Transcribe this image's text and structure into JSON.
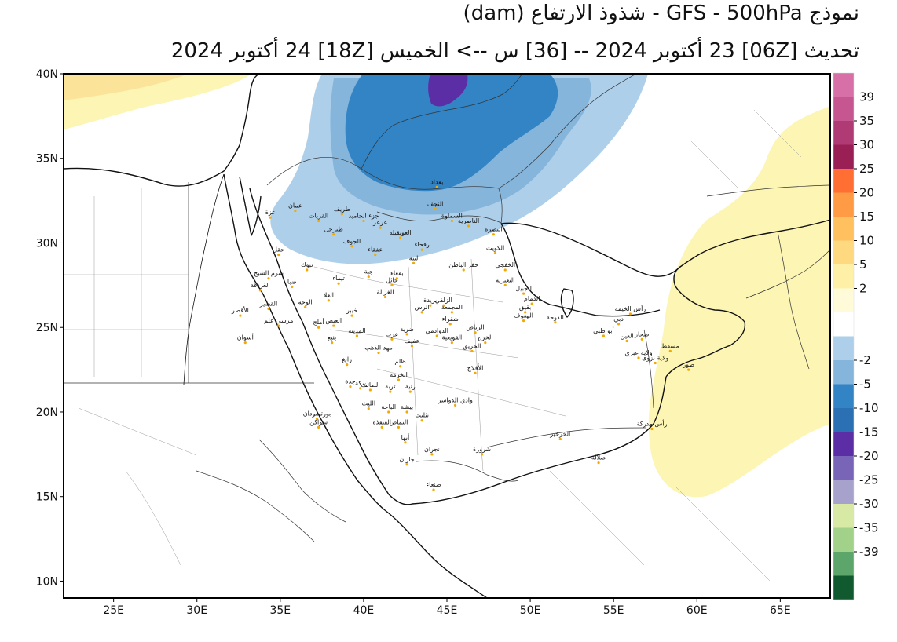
{
  "header": {
    "line1": "نموذج GFS - 500hPa - شذوذ الارتفاع (dam)",
    "line2": "تحديث [06Z] 23 أكتوبر 2024 -- [36] س --> الخميس [18Z] 24 أكتوبر 2024"
  },
  "map": {
    "lon_range": [
      22,
      68
    ],
    "lat_range": [
      9,
      40
    ],
    "x_ticks": [
      {
        "label": "25E",
        "lon": 25
      },
      {
        "label": "30E",
        "lon": 30
      },
      {
        "label": "35E",
        "lon": 35
      },
      {
        "label": "40E",
        "lon": 40
      },
      {
        "label": "45E",
        "lon": 45
      },
      {
        "label": "50E",
        "lon": 50
      },
      {
        "label": "55E",
        "lon": 55
      },
      {
        "label": "60E",
        "lon": 60
      },
      {
        "label": "65E",
        "lon": 65
      }
    ],
    "y_ticks": [
      {
        "label": "40N",
        "lat": 40
      },
      {
        "label": "35N",
        "lat": 35
      },
      {
        "label": "30N",
        "lat": 30
      },
      {
        "label": "25N",
        "lat": 25
      },
      {
        "label": "20N",
        "lat": 20
      },
      {
        "label": "15N",
        "lat": 15
      },
      {
        "label": "10N",
        "lat": 10
      }
    ],
    "anomaly_colors": {
      "neg2": "#aecfea",
      "neg5": "#86b5dc",
      "neg10": "#3384c4",
      "neg20": "#5b2ea6",
      "pos2": "#fcf5b4",
      "pos5": "#fbe49a"
    }
  },
  "colorbar": {
    "swatches": [
      "#d670a6",
      "#c5568f",
      "#b03a73",
      "#9a1f55",
      "#ff6e33",
      "#ff9a45",
      "#ffc060",
      "#ffd97f",
      "#fff0a8",
      "#fffbd8",
      "#ffffff",
      "#aecfea",
      "#86b5dc",
      "#3384c4",
      "#2a70b2",
      "#5b2ea6",
      "#7865b8",
      "#a6a2cc",
      "#d7e9a5",
      "#a2d18a",
      "#5ca66c",
      "#11592f"
    ],
    "labels": [
      "39",
      "35",
      "30",
      "25",
      "20",
      "15",
      "10",
      "5",
      "2",
      "-2",
      "-5",
      "-10",
      "-15",
      "-20",
      "-25",
      "-30",
      "-35",
      "-39"
    ]
  },
  "cities": [
    {
      "name": "بغداد",
      "lon": 44.4,
      "lat": 33.3
    },
    {
      "name": "النجف",
      "lon": 44.3,
      "lat": 32.0
    },
    {
      "name": "السماوة",
      "lon": 45.3,
      "lat": 31.3
    },
    {
      "name": "الناصرية",
      "lon": 46.3,
      "lat": 31.0
    },
    {
      "name": "البصرة",
      "lon": 47.8,
      "lat": 30.5
    },
    {
      "name": "الكويت",
      "lon": 47.9,
      "lat": 29.4
    },
    {
      "name": "عمان",
      "lon": 35.9,
      "lat": 31.9
    },
    {
      "name": "طريف",
      "lon": 38.7,
      "lat": 31.7
    },
    {
      "name": "القريات",
      "lon": 37.3,
      "lat": 31.3
    },
    {
      "name": "عرعر",
      "lon": 41.0,
      "lat": 30.9
    },
    {
      "name": "جزء الجاميد",
      "lon": 40.0,
      "lat": 31.3
    },
    {
      "name": "العويقيلة",
      "lon": 42.2,
      "lat": 30.3
    },
    {
      "name": "طبرجل",
      "lon": 38.2,
      "lat": 30.5
    },
    {
      "name": "الجوف",
      "lon": 39.3,
      "lat": 29.8
    },
    {
      "name": "رفحاء",
      "lon": 43.5,
      "lat": 29.6
    },
    {
      "name": "عفقاء",
      "lon": 40.7,
      "lat": 29.3
    },
    {
      "name": "لينة",
      "lon": 43.0,
      "lat": 28.8
    },
    {
      "name": "حفر الباطن",
      "lon": 46.0,
      "lat": 28.4
    },
    {
      "name": "الخفجي",
      "lon": 48.5,
      "lat": 28.4
    },
    {
      "name": "تبوك",
      "lon": 36.6,
      "lat": 28.4
    },
    {
      "name": "جبة",
      "lon": 40.3,
      "lat": 28.0
    },
    {
      "name": "بقعاء",
      "lon": 42.0,
      "lat": 27.9
    },
    {
      "name": "حائل",
      "lon": 41.7,
      "lat": 27.5
    },
    {
      "name": "تيماء",
      "lon": 38.5,
      "lat": 27.6
    },
    {
      "name": "الغزالة",
      "lon": 41.3,
      "lat": 26.8
    },
    {
      "name": "الجبيل",
      "lon": 49.6,
      "lat": 27.0
    },
    {
      "name": "النعيرية",
      "lon": 48.5,
      "lat": 27.5
    },
    {
      "name": "الدمام",
      "lon": 50.1,
      "lat": 26.4
    },
    {
      "name": "بقيق",
      "lon": 49.7,
      "lat": 25.9
    },
    {
      "name": "الهفوف",
      "lon": 49.6,
      "lat": 25.4
    },
    {
      "name": "الدوحة",
      "lon": 51.5,
      "lat": 25.3
    },
    {
      "name": "الزلفي",
      "lon": 44.8,
      "lat": 26.3
    },
    {
      "name": "بريدة",
      "lon": 44.0,
      "lat": 26.3
    },
    {
      "name": "المجمعة",
      "lon": 45.3,
      "lat": 25.9
    },
    {
      "name": "الرس",
      "lon": 43.5,
      "lat": 25.9
    },
    {
      "name": "شقراء",
      "lon": 45.2,
      "lat": 25.2
    },
    {
      "name": "ضرية",
      "lon": 42.6,
      "lat": 24.6
    },
    {
      "name": "الدوادمي",
      "lon": 44.4,
      "lat": 24.5
    },
    {
      "name": "الرياض",
      "lon": 46.7,
      "lat": 24.7
    },
    {
      "name": "الخرج",
      "lon": 47.3,
      "lat": 24.1
    },
    {
      "name": "القويعية",
      "lon": 45.3,
      "lat": 24.1
    },
    {
      "name": "عفيف",
      "lon": 42.9,
      "lat": 23.9
    },
    {
      "name": "الحريق",
      "lon": 46.5,
      "lat": 23.6
    },
    {
      "name": "الأفلاج",
      "lon": 46.7,
      "lat": 22.3
    },
    {
      "name": "العلا",
      "lon": 37.9,
      "lat": 26.6
    },
    {
      "name": "الوجه",
      "lon": 36.5,
      "lat": 26.2
    },
    {
      "name": "خيبر",
      "lon": 39.3,
      "lat": 25.7
    },
    {
      "name": "العيص",
      "lon": 38.2,
      "lat": 25.1
    },
    {
      "name": "أملج",
      "lon": 37.3,
      "lat": 25.0
    },
    {
      "name": "المدينة",
      "lon": 39.6,
      "lat": 24.5
    },
    {
      "name": "ينبع",
      "lon": 38.1,
      "lat": 24.1
    },
    {
      "name": "مهد الذهب",
      "lon": 40.9,
      "lat": 23.5
    },
    {
      "name": "عرب",
      "lon": 41.7,
      "lat": 24.3
    },
    {
      "name": "رابغ",
      "lon": 39.0,
      "lat": 22.8
    },
    {
      "name": "ظلم",
      "lon": 42.2,
      "lat": 22.7
    },
    {
      "name": "الخرمة",
      "lon": 42.1,
      "lat": 21.9
    },
    {
      "name": "جدة",
      "lon": 39.2,
      "lat": 21.5
    },
    {
      "name": "مكة",
      "lon": 39.8,
      "lat": 21.4
    },
    {
      "name": "الطائف",
      "lon": 40.4,
      "lat": 21.3
    },
    {
      "name": "تربة",
      "lon": 41.6,
      "lat": 21.2
    },
    {
      "name": "رنية",
      "lon": 42.8,
      "lat": 21.2
    },
    {
      "name": "الليث",
      "lon": 40.3,
      "lat": 20.2
    },
    {
      "name": "الباحة",
      "lon": 41.5,
      "lat": 20.0
    },
    {
      "name": "وادي الدواسر",
      "lon": 45.5,
      "lat": 20.4
    },
    {
      "name": "بيشة",
      "lon": 42.6,
      "lat": 20.0
    },
    {
      "name": "تثليث",
      "lon": 43.5,
      "lat": 19.5
    },
    {
      "name": "القنفذة",
      "lon": 41.1,
      "lat": 19.1
    },
    {
      "name": "النماص",
      "lon": 42.1,
      "lat": 19.1
    },
    {
      "name": "أبها",
      "lon": 42.5,
      "lat": 18.2
    },
    {
      "name": "نجران",
      "lon": 44.1,
      "lat": 17.5
    },
    {
      "name": "جازان",
      "lon": 42.6,
      "lat": 16.9
    },
    {
      "name": "شرورة",
      "lon": 47.1,
      "lat": 17.5
    },
    {
      "name": "الخرخير",
      "lon": 51.8,
      "lat": 18.4
    },
    {
      "name": "صلالة",
      "lon": 54.1,
      "lat": 17.0
    },
    {
      "name": "صنعاء",
      "lon": 44.2,
      "lat": 15.4
    },
    {
      "name": "رأس الخيمة",
      "lon": 56.0,
      "lat": 25.8
    },
    {
      "name": "دبي",
      "lon": 55.3,
      "lat": 25.2
    },
    {
      "name": "أبو ظبي",
      "lon": 54.4,
      "lat": 24.5
    },
    {
      "name": "صحار",
      "lon": 56.7,
      "lat": 24.3
    },
    {
      "name": "العين",
      "lon": 55.8,
      "lat": 24.2
    },
    {
      "name": "مسقط",
      "lon": 58.4,
      "lat": 23.6
    },
    {
      "name": "ولاية عبري",
      "lon": 56.5,
      "lat": 23.2
    },
    {
      "name": "ولاية نزوى",
      "lon": 57.5,
      "lat": 22.9
    },
    {
      "name": "صور",
      "lon": 59.5,
      "lat": 22.5
    },
    {
      "name": "رأس مدركة",
      "lon": 57.3,
      "lat": 19.0
    },
    {
      "name": "حقل",
      "lon": 34.9,
      "lat": 29.3
    },
    {
      "name": "شرم الشيخ",
      "lon": 34.3,
      "lat": 27.9
    },
    {
      "name": "ضبا",
      "lon": 35.7,
      "lat": 27.4
    },
    {
      "name": "الغردقة",
      "lon": 33.8,
      "lat": 27.2
    },
    {
      "name": "القصير",
      "lon": 34.3,
      "lat": 26.1
    },
    {
      "name": "الأقصر",
      "lon": 32.6,
      "lat": 25.7
    },
    {
      "name": "مرسى علم",
      "lon": 34.9,
      "lat": 25.1
    },
    {
      "name": "أسوان",
      "lon": 32.9,
      "lat": 24.1
    },
    {
      "name": "بورتسودان",
      "lon": 37.2,
      "lat": 19.6
    },
    {
      "name": "سواكن",
      "lon": 37.3,
      "lat": 19.1
    },
    {
      "name": "غزة",
      "lon": 34.4,
      "lat": 31.5
    }
  ]
}
